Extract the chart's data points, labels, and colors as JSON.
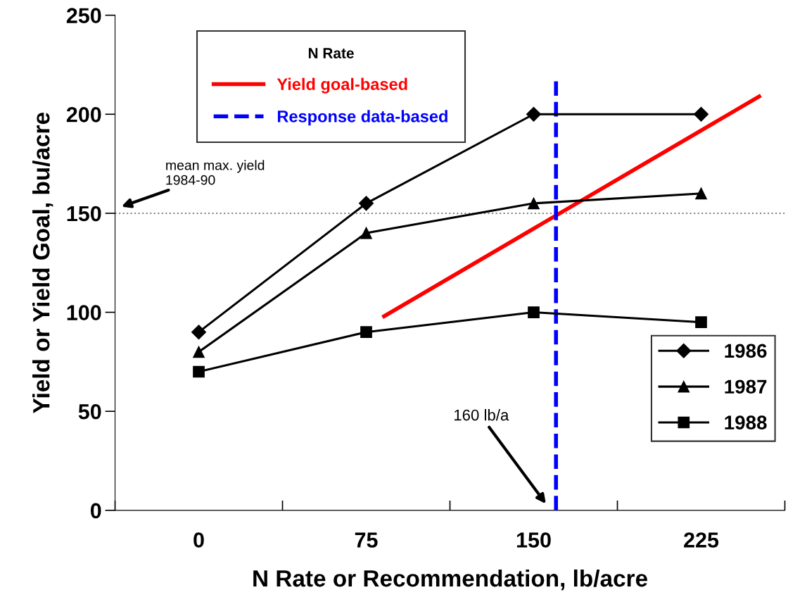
{
  "chart_data": {
    "type": "line",
    "xlabel": "N Rate or Recommendation, lb/acre",
    "ylabel": "Yield or Yield Goal, bu/acre",
    "legend_title": "N Rate",
    "xlim": [
      -37.5,
      262.5
    ],
    "xticks": [
      {
        "value": -37.5,
        "label": null
      },
      {
        "value": 0,
        "label": "0"
      },
      {
        "value": 37.5,
        "label": null
      },
      {
        "value": 75,
        "label": "75"
      },
      {
        "value": 112.5,
        "label": null
      },
      {
        "value": 150,
        "label": "150"
      },
      {
        "value": 187.5,
        "label": null
      },
      {
        "value": 225,
        "label": "225"
      },
      {
        "value": 262.5,
        "label": null
      }
    ],
    "ylim": [
      0,
      250
    ],
    "yticks": [
      0,
      50,
      100,
      150,
      200,
      250
    ],
    "grid": false,
    "legend": [
      "top left",
      "bottom right"
    ],
    "x": [
      0,
      75,
      150,
      225
    ],
    "series": [
      {
        "name": "Yield goal-based",
        "color": "#ff0000",
        "x": [
          83,
          251
        ],
        "values": [
          98,
          209
        ],
        "marker": "none",
        "line_style": "solid"
      },
      {
        "name": "Response data-based",
        "color": "#0000ff",
        "x": [
          160,
          160
        ],
        "values": [
          0,
          217
        ],
        "marker": "none",
        "line_style": "dashed"
      },
      {
        "name": "1986",
        "color": "#000000",
        "values": [
          90,
          155,
          200,
          200
        ],
        "marker": "diamond",
        "line_style": "solid"
      },
      {
        "name": "1987",
        "color": "#000000",
        "values": [
          80,
          140,
          155,
          160
        ],
        "marker": "triangle",
        "line_style": "solid"
      },
      {
        "name": "1988",
        "color": "#000000",
        "values": [
          70,
          90,
          100,
          95
        ],
        "marker": "square",
        "line_style": "solid"
      }
    ],
    "ref_lines": [
      {
        "axis": "y",
        "value": 150,
        "label": "mean max. yield\n1984-90",
        "color": "#808080",
        "line_style": "dotted"
      }
    ],
    "annotations": [
      "160 lb/a"
    ]
  }
}
